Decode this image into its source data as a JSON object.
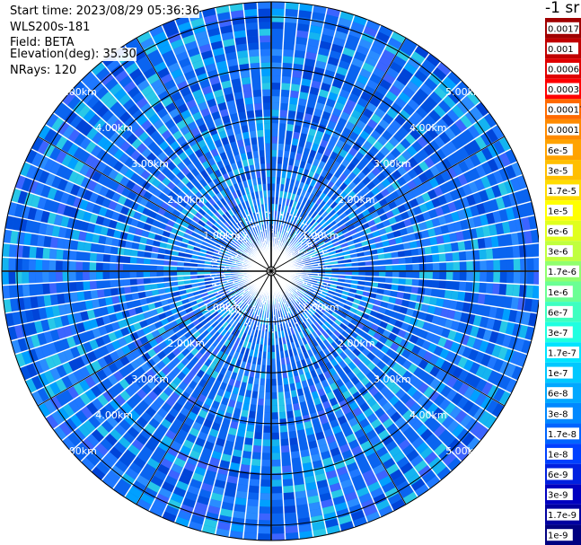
{
  "info": {
    "start_time": "Start time: 2023/08/29 05:36:36",
    "instrument": "WLS200s-181",
    "field": "Field: BETA",
    "elevation": "Elevation(deg): 35.30",
    "nrays": "NRays: 120"
  },
  "colorbar": {
    "title": "-1 sr",
    "labels": [
      "0.0017",
      "0.001",
      "0.0006",
      "0.0003",
      "0.00017",
      "0.0001",
      "6e-5",
      "3e-5",
      "1.7e-5",
      "1e-5",
      "6e-6",
      "3e-6",
      "1.7e-6",
      "1e-6",
      "6e-7",
      "3e-7",
      "1.7e-7",
      "1e-7",
      "6e-8",
      "3e-8",
      "1.7e-8",
      "1e-8",
      "6e-9",
      "3e-9",
      "1.7e-9",
      "1e-9"
    ],
    "colors": [
      "#a00000",
      "#c00000",
      "#e00000",
      "#ff0000",
      "#ff6a00",
      "#ff8a00",
      "#ffa300",
      "#ffbf00",
      "#ffdc00",
      "#ffff00",
      "#e0ff1e",
      "#c0ff3e",
      "#90ff6e",
      "#6aff94",
      "#3effc0",
      "#20ffe0",
      "#00e4ff",
      "#00c8ff",
      "#00a8ff",
      "#0088ff",
      "#0064ff",
      "#0040ff",
      "#0020e0",
      "#0000c0",
      "#0000a0",
      "#000080"
    ]
  },
  "chart_data": {
    "type": "heatmap",
    "projection": "polar PPI",
    "quantity": "BETA",
    "range_rings_km": [
      1,
      2,
      3,
      4,
      5
    ],
    "ring_labels": [
      "1.00km",
      "2.00km",
      "3.00km",
      "4.00km",
      "5.00km"
    ],
    "max_range_km": 5.3,
    "nrays": 120,
    "typical_value": "1e-8",
    "near_range_value": "1.7e-8"
  }
}
